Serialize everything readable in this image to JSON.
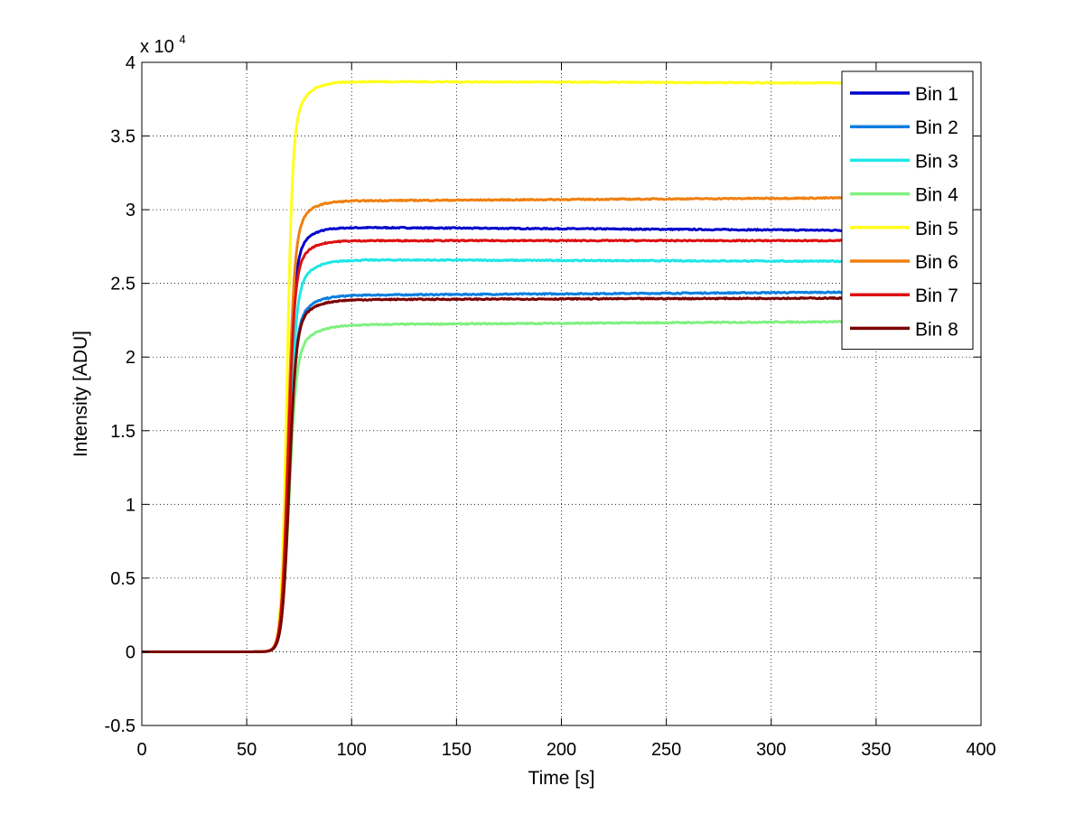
{
  "chart_data": {
    "type": "line",
    "title": "",
    "xlabel": "Time [s]",
    "ylabel": "Intensity [ADU]",
    "y_exponent_label": "x 10",
    "y_exponent_power": "4",
    "xlim": [
      0,
      400
    ],
    "ylim": [
      -0.5,
      4
    ],
    "y_scale_factor": 10000,
    "x_ticks": [
      "0",
      "50",
      "100",
      "150",
      "200",
      "250",
      "300",
      "350",
      "400"
    ],
    "y_ticks": [
      "-0.5",
      "0",
      "0.5",
      "1",
      "1.5",
      "2",
      "2.5",
      "3",
      "3.5",
      "4"
    ],
    "grid": true,
    "legend_position": "top-right",
    "x_end": 335,
    "series": [
      {
        "name": "Bin 1",
        "color": "#0000cc",
        "rise_center": 69.5,
        "rise_width": 1.5,
        "plateau": 2.88,
        "end_value": 2.86,
        "settle": 6
      },
      {
        "name": "Bin 2",
        "color": "#0a7fe0",
        "rise_center": 70,
        "rise_width": 1.6,
        "plateau": 2.42,
        "end_value": 2.44,
        "settle": 7
      },
      {
        "name": "Bin 3",
        "color": "#1ee6e6",
        "rise_center": 70,
        "rise_width": 1.6,
        "plateau": 2.66,
        "end_value": 2.65,
        "settle": 7
      },
      {
        "name": "Bin 4",
        "color": "#80f080",
        "rise_center": 70,
        "rise_width": 1.7,
        "plateau": 2.22,
        "end_value": 2.24,
        "settle": 8
      },
      {
        "name": "Bin 5",
        "color": "#ffff1a",
        "rise_center": 69,
        "rise_width": 1.3,
        "plateau": 3.87,
        "end_value": 3.86,
        "settle": 6
      },
      {
        "name": "Bin 6",
        "color": "#f08010",
        "rise_center": 69.5,
        "rise_width": 1.5,
        "plateau": 3.06,
        "end_value": 3.08,
        "settle": 6
      },
      {
        "name": "Bin 7",
        "color": "#dd1111",
        "rise_center": 69.5,
        "rise_width": 1.5,
        "plateau": 2.79,
        "end_value": 2.79,
        "settle": 6
      },
      {
        "name": "Bin 8",
        "color": "#7a0000",
        "rise_center": 70,
        "rise_width": 1.6,
        "plateau": 2.39,
        "end_value": 2.4,
        "settle": 7
      }
    ]
  }
}
